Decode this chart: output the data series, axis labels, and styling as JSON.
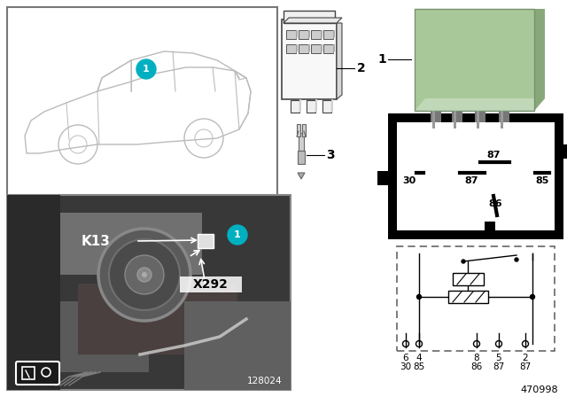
{
  "bg_color": "#f0f0f0",
  "white": "#ffffff",
  "black": "#000000",
  "gray_light": "#cccccc",
  "gray_mid": "#999999",
  "gray_dark": "#555555",
  "photo_bg": "#4a4a4a",
  "photo_mid": "#6a6a6a",
  "photo_light": "#888888",
  "relay_green": "#a8c89a",
  "relay_green_dark": "#88a87a",
  "teal": "#00b0c0",
  "teal_dark": "#009aaa",
  "car_outline": "#bbbbbb",
  "part_number": "470998",
  "photo_number": "128024",
  "label_1": "1",
  "label_2": "2",
  "label_3": "3",
  "k13_label": "K13",
  "x292_label": "X292",
  "pin_row1": [
    "6",
    "4",
    "8",
    "5",
    "2"
  ],
  "pin_row2": [
    "30",
    "85",
    "86",
    "87",
    "87"
  ],
  "box_pin_87_top": "87",
  "box_pin_87_mid": "87",
  "box_pin_30": "30",
  "box_pin_85": "85",
  "box_pin_86": "86"
}
